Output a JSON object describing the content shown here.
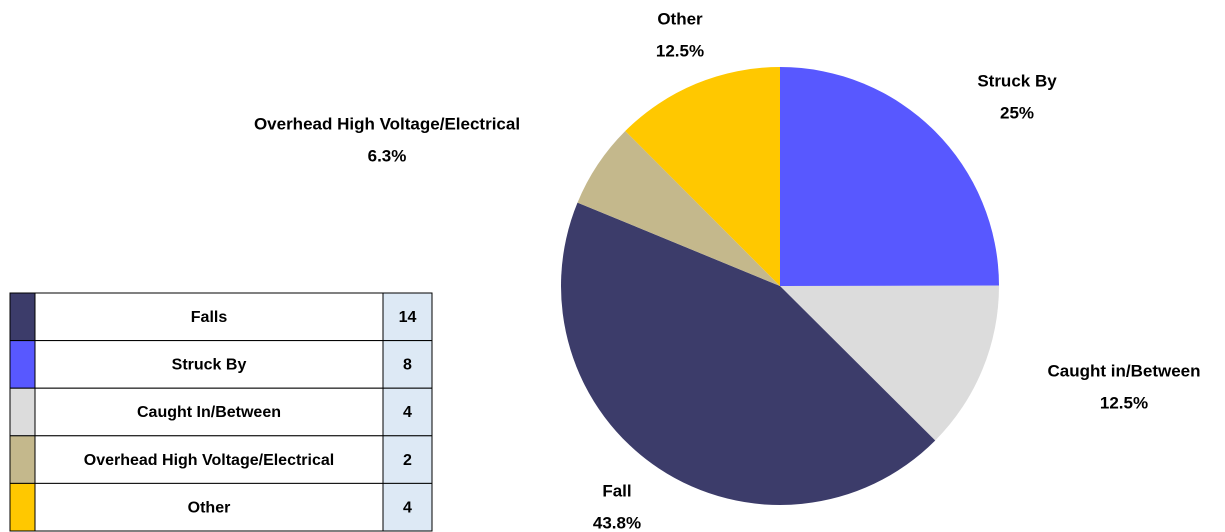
{
  "chart_data": {
    "type": "pie",
    "categories": [
      "Struck By",
      "Caught in/Between",
      "Fall",
      "Overhead High Voltage/Electrical",
      "Other"
    ],
    "values": [
      25,
      12.5,
      43.8,
      6.3,
      12.5
    ],
    "value_labels": [
      "25%",
      "12.5%",
      "43.8%",
      "6.3%",
      "12.5%"
    ],
    "colors": [
      "#5858ff",
      "#dcdcdc",
      "#3c3c6a",
      "#c4b88c",
      "#ffc800"
    ]
  },
  "table": {
    "rows": [
      {
        "color": "#3c3c6a",
        "name": "Falls",
        "count": 14
      },
      {
        "color": "#5858ff",
        "name": "Struck By",
        "count": 8
      },
      {
        "color": "#dcdcdc",
        "name": "Caught In/Between",
        "count": 4
      },
      {
        "color": "#c4b88c",
        "name": "Overhead High Voltage/Electrical",
        "count": 2
      },
      {
        "color": "#ffc800",
        "name": "Other",
        "count": 4
      }
    ]
  }
}
